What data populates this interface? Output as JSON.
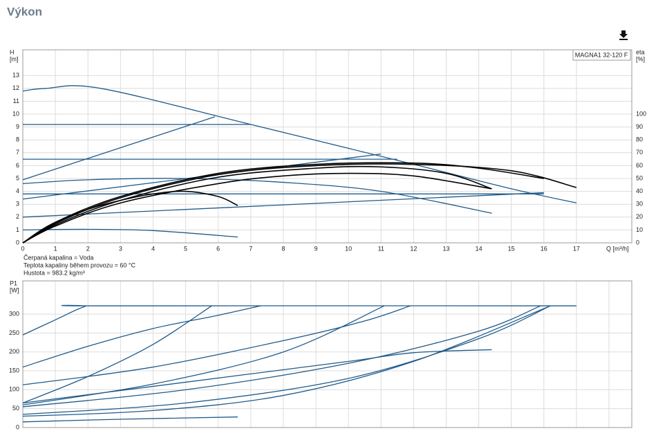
{
  "page_title": "Výkon",
  "chart_data": [
    {
      "type": "line",
      "annotation": "MAGNA1 32-120 F",
      "y_label": [
        "H",
        "[m]"
      ],
      "y2_label": [
        "eta",
        "[%]"
      ],
      "x_label": "Q [m³/h]",
      "notes": [
        "Čerpaná kapalina = Voda",
        "Teplota kapaliny během provozu = 60 °C",
        "Hustota = 983.2 kg/m³"
      ],
      "xlim": [
        0,
        18.7
      ],
      "xticks": [
        0,
        1,
        2,
        3,
        4,
        5,
        6,
        7,
        8,
        9,
        10,
        11,
        12,
        13,
        14,
        15,
        16,
        17
      ],
      "ylim": [
        0,
        15
      ],
      "yticks": [
        0,
        1,
        2,
        3,
        4,
        5,
        6,
        7,
        8,
        9,
        10,
        11,
        12,
        13
      ],
      "y2lim": [
        0,
        150
      ],
      "y2ticks": [
        0,
        10,
        20,
        30,
        40,
        50,
        60,
        70,
        80,
        90,
        100
      ],
      "grid": true,
      "series": [
        {
          "color": "#1f5a8a",
          "x": [
            0,
            0.7,
            2.4,
            7,
            12,
            15,
            17
          ],
          "values": [
            11.8,
            12,
            12,
            9.2,
            6.1,
            4.2,
            3.1
          ]
        },
        {
          "color": "#1f5a8a",
          "x": [
            0,
            7
          ],
          "values": [
            9.2,
            9.2
          ]
        },
        {
          "color": "#1f5a8a",
          "x": [
            0,
            5.9
          ],
          "values": [
            4.9,
            9.8
          ]
        },
        {
          "color": "#1f5a8a",
          "x": [
            0,
            11.5
          ],
          "values": [
            6.5,
            6.5
          ]
        },
        {
          "color": "#1f5a8a",
          "x": [
            0,
            11
          ],
          "values": [
            3.4,
            6.9
          ]
        },
        {
          "color": "#1f5a8a",
          "x": [
            0,
            2,
            5,
            8,
            11,
            14.4
          ],
          "values": [
            4.6,
            4.9,
            5.0,
            4.7,
            4.0,
            2.3
          ]
        },
        {
          "color": "#1f5a8a",
          "x": [
            0,
            16
          ],
          "values": [
            3.8,
            3.8
          ]
        },
        {
          "color": "#1f5a8a",
          "x": [
            0,
            16
          ],
          "values": [
            2.0,
            3.9
          ]
        },
        {
          "color": "#1f5a8a",
          "x": [
            0,
            2,
            4,
            6.6
          ],
          "values": [
            1.0,
            1.05,
            0.95,
            0.45
          ]
        },
        {
          "color": "#000000",
          "axis": "y2",
          "x": [
            0,
            1,
            2,
            3,
            4,
            5,
            6,
            6.6
          ],
          "values": [
            0,
            15,
            26,
            33,
            38,
            40,
            36,
            29
          ]
        },
        {
          "color": "#000000",
          "axis": "y2",
          "x": [
            0,
            1,
            3,
            6,
            8,
            10,
            12,
            14.4
          ],
          "values": [
            0,
            13,
            31,
            46,
            52,
            54,
            52,
            42
          ]
        },
        {
          "color": "#000000",
          "axis": "y2",
          "x": [
            0,
            1,
            3,
            6,
            9,
            11,
            13,
            14.4
          ],
          "values": [
            0,
            14,
            33,
            51,
            58,
            59,
            54,
            42
          ]
        },
        {
          "color": "#000000",
          "axis": "y2",
          "x": [
            0,
            1,
            3,
            6,
            9,
            12,
            15,
            17
          ],
          "values": [
            0,
            15,
            35,
            53,
            60,
            61,
            56,
            43
          ]
        },
        {
          "color": "#000000",
          "axis": "y2",
          "x": [
            0,
            1,
            3,
            6,
            9,
            12,
            14,
            16
          ],
          "values": [
            0,
            16,
            36,
            54,
            61,
            62,
            58,
            50
          ]
        }
      ]
    },
    {
      "type": "line",
      "y_label": [
        "P1",
        "[W]"
      ],
      "xlim": [
        0,
        18.7
      ],
      "xticks": [
        0,
        1,
        2,
        3,
        4,
        5,
        6,
        7,
        8,
        9,
        10,
        11,
        12,
        13,
        14,
        15,
        16,
        17,
        18
      ],
      "ylim": [
        0,
        388
      ],
      "yticks": [
        0,
        50,
        100,
        150,
        200,
        250,
        300
      ],
      "grid": true,
      "series": [
        {
          "color": "#1f5a8a",
          "x": [
            0,
            1,
            1.9,
            2.4,
            17
          ],
          "values": [
            245,
            285,
            320,
            322,
            322
          ]
        },
        {
          "color": "#1f5a8a",
          "x": [
            0,
            2,
            4,
            6,
            7.3
          ],
          "values": [
            160,
            215,
            262,
            297,
            322
          ]
        },
        {
          "color": "#1f5a8a",
          "x": [
            0,
            4,
            8,
            10.5,
            11.9
          ],
          "values": [
            113,
            160,
            230,
            282,
            322
          ]
        },
        {
          "color": "#1f5a8a",
          "x": [
            0,
            2,
            4,
            5.8
          ],
          "values": [
            65,
            135,
            220,
            322
          ]
        },
        {
          "color": "#1f5a8a",
          "x": [
            0,
            4,
            8,
            11.1
          ],
          "values": [
            60,
            115,
            200,
            322
          ]
        },
        {
          "color": "#1f5a8a",
          "x": [
            0,
            5,
            10,
            14,
            15.9
          ],
          "values": [
            55,
            100,
            170,
            255,
            322
          ]
        },
        {
          "color": "#1f5a8a",
          "x": [
            0,
            5,
            10,
            12,
            14.4
          ],
          "values": [
            65,
            120,
            175,
            198,
            206
          ]
        },
        {
          "color": "#1f5a8a",
          "x": [
            0,
            5,
            10,
            14,
            16.2
          ],
          "values": [
            35,
            65,
            130,
            235,
            322
          ]
        },
        {
          "color": "#1f5a8a",
          "x": [
            0,
            4,
            8,
            12,
            16.2
          ],
          "values": [
            30,
            45,
            85,
            175,
            322
          ]
        },
        {
          "color": "#1f5a8a",
          "x": [
            0,
            3,
            6.6
          ],
          "values": [
            15,
            22,
            28
          ]
        }
      ]
    }
  ]
}
